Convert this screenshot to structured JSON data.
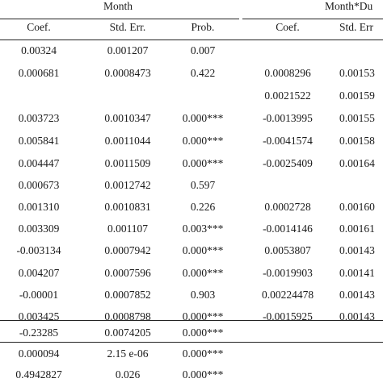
{
  "headers": {
    "group1": "Month",
    "group2": "Month*Du",
    "cols": [
      "Coef.",
      "Std. Err.",
      "Prob.",
      "Coef.",
      "Std. Err"
    ]
  },
  "rows": [
    [
      "0.00324",
      "0.001207",
      "0.007",
      "",
      ""
    ],
    [
      "0.000681",
      "0.0008473",
      "0.422",
      "0.0008296",
      "0.00153"
    ],
    [
      "",
      "",
      "",
      "0.0021522",
      "0.00159"
    ],
    [
      "0.003723",
      "0.0010347",
      "0.000***",
      "-0.0013995",
      "0.00155"
    ],
    [
      "0.005841",
      "0.0011044",
      "0.000***",
      "-0.0041574",
      "0.00158"
    ],
    [
      "0.004447",
      "0.0011509",
      "0.000***",
      "-0.0025409",
      "0.00164"
    ],
    [
      "0.000673",
      "0.0012742",
      "0.597",
      "",
      ""
    ],
    [
      "0.001310",
      "0.0010831",
      "0.226",
      "0.0002728",
      "0.00160"
    ],
    [
      "0.003309",
      "0.001107",
      "0.003***",
      "-0.0014146",
      "0.00161"
    ],
    [
      "-0.003134",
      "0.0007942",
      "0.000***",
      "0.0053807",
      "0.00143"
    ],
    [
      "0.004207",
      "0.0007596",
      "0.000***",
      "-0.0019903",
      "0.00141"
    ],
    [
      "-0.00001",
      "0.0007852",
      "0.903",
      "0.00224478",
      "0.00143"
    ],
    [
      "0.003425",
      "0.0008798",
      "0.000***",
      "-0.0015925",
      "0.00143"
    ],
    [
      "-0.23285",
      "0.0074205",
      "0.000***",
      "",
      ""
    ],
    [
      "0.000094",
      "2.15 e-06",
      "0.000***",
      "",
      ""
    ],
    [
      "0.4942827",
      "0.026",
      "0.000***",
      "",
      ""
    ]
  ]
}
